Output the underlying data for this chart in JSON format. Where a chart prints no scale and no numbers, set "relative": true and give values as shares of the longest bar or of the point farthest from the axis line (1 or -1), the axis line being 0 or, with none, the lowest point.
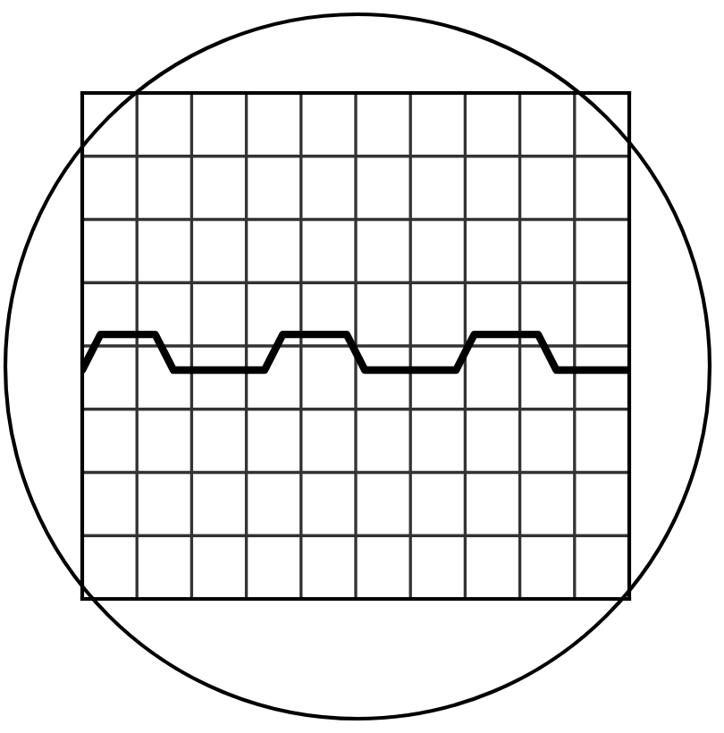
{
  "chart_data": {
    "type": "line",
    "relative": true,
    "grid": true,
    "marker": "none",
    "line_style": "solid",
    "categories": [
      null,
      null,
      null,
      null,
      null,
      null,
      null,
      null,
      null,
      null,
      null,
      null,
      null,
      null,
      null,
      null,
      null,
      null,
      null,
      null,
      null,
      null,
      null,
      null,
      null,
      null,
      null,
      null,
      null,
      null,
      null,
      null,
      null,
      null,
      null,
      null,
      null,
      null,
      null,
      null,
      null,
      null,
      null,
      null,
      null,
      null,
      null,
      null,
      null,
      null,
      null,
      null,
      null,
      null,
      null,
      null,
      null,
      null,
      null,
      null,
      null
    ],
    "series": [
      {
        "color": "#000000",
        "values": [
          -1,
          -0.26,
          0.48,
          0.48,
          0.48,
          0.48,
          0.48,
          0.48,
          0.48,
          -0.26,
          -1,
          -1,
          -1,
          -1,
          -1,
          -1,
          -1,
          -1,
          -1,
          -1,
          -1,
          -0.26,
          0.48,
          0.48,
          0.48,
          0.48,
          0.48,
          0.48,
          0.48,
          0.48,
          -0.26,
          -1,
          -1,
          -1,
          -1,
          -1,
          -1,
          -1,
          -1,
          -1,
          -1,
          -1,
          -0.26,
          0.48,
          0.48,
          0.48,
          0.48,
          0.48,
          0.48,
          0.48,
          0.48,
          -0.26,
          -1,
          -1,
          -1,
          -1,
          -1,
          -1,
          -1,
          -1,
          -1
        ]
      }
    ]
  }
}
